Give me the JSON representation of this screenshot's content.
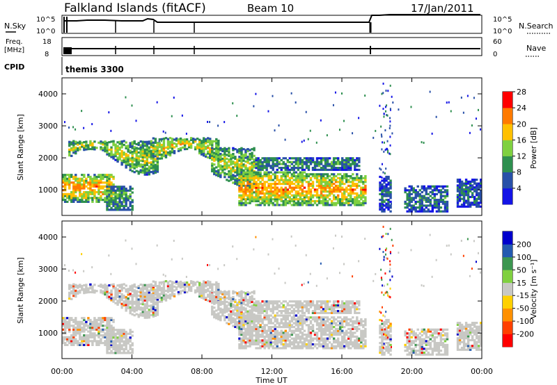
{
  "header": {
    "station": "Falkland Islands (fitACF)",
    "beam": "Beam 10",
    "date": "17/Jan/2011"
  },
  "panels": {
    "noise_left_label": "N.Sky",
    "noise_right_label": "N.Search",
    "noise_left_ticks": [
      "10^5",
      "10^0"
    ],
    "noise_right_ticks": [
      "10^5",
      "10^0"
    ],
    "freq_label_top": "Freq.",
    "freq_label_unit": "[MHz]",
    "freq_ticks": [
      "18",
      "8"
    ],
    "nave_label": "Nave",
    "nave_ticks": [
      "60",
      "0"
    ],
    "cpid_label": "CPID",
    "cpid_text": "themis 3300"
  },
  "chart_data": [
    {
      "type": "heatmap",
      "name": "power",
      "ylabel": "Slant Range [km]",
      "xlabel": "",
      "y_ticks": [
        "1000",
        "2000",
        "3000",
        "4000"
      ],
      "ylim": [
        200,
        4500
      ],
      "xlim": [
        0,
        24
      ],
      "colorbar_label": "Power [dB]",
      "colorbar_ticks": [
        "4",
        "8",
        "12",
        "16",
        "20",
        "24",
        "28"
      ],
      "colorbar_range": [
        0,
        32
      ],
      "colors": [
        "#1414e6",
        "#2850a8",
        "#2e8f4f",
        "#7fd040",
        "#ffc000",
        "#ff7a00",
        "#ff0000"
      ]
    },
    {
      "type": "heatmap",
      "name": "velocity",
      "ylabel": "Slant Range [km]",
      "xlabel": "Time UT",
      "x_ticks": [
        "00:00",
        "04:00",
        "08:00",
        "12:00",
        "16:00",
        "20:00",
        "00:00"
      ],
      "y_ticks": [
        "1000",
        "2000",
        "3000",
        "4000"
      ],
      "ylim": [
        200,
        4500
      ],
      "xlim": [
        0,
        24
      ],
      "colorbar_label": "Velocity [m s⁻¹]",
      "colorbar_ticks": [
        "200",
        "100",
        "50",
        "15",
        "-15",
        "-50",
        "-100",
        "-200"
      ],
      "colors": [
        "#0000cc",
        "#245ab0",
        "#3c9650",
        "#80d040",
        "#c8c8c4",
        "#ffd000",
        "#ff9000",
        "#ff4000",
        "#ff0000"
      ]
    }
  ],
  "colors": {
    "ground_scatter": "#c8c8c4"
  }
}
